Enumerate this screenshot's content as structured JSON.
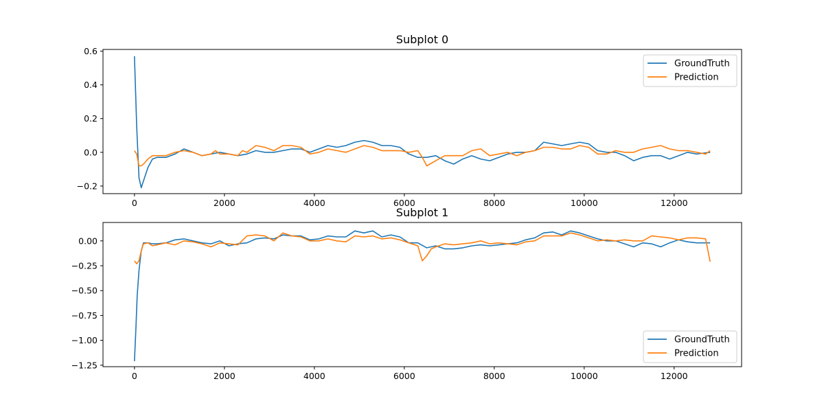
{
  "colors": {
    "groundtruth": "#1f77b4",
    "prediction": "#ff7f0e",
    "axis": "#000000",
    "legend_border": "#cccccc"
  },
  "chart_data": [
    {
      "type": "line",
      "title": "Subplot 0",
      "xlabel": "",
      "ylabel": "",
      "xlim": [
        -700,
        13500
      ],
      "ylim": [
        -0.245,
        0.61
      ],
      "xticks": [
        0,
        2000,
        4000,
        6000,
        8000,
        10000,
        12000
      ],
      "xtick_labels": [
        "0",
        "2000",
        "4000",
        "6000",
        "8000",
        "10000",
        "12000"
      ],
      "yticks": [
        -0.2,
        0.0,
        0.2,
        0.4,
        0.6
      ],
      "ytick_labels": [
        "−0.2",
        "0.0",
        "0.2",
        "0.4",
        "0.6"
      ],
      "grid": false,
      "legend_position": "top-right",
      "series": [
        {
          "name": "GroundTruth",
          "x": [
            0,
            50,
            100,
            150,
            200,
            300,
            400,
            500,
            700,
            900,
            1100,
            1300,
            1500,
            1700,
            1900,
            2100,
            2300,
            2500,
            2700,
            2900,
            3100,
            3300,
            3500,
            3700,
            3900,
            4100,
            4300,
            4500,
            4700,
            4900,
            5100,
            5300,
            5500,
            5700,
            5900,
            6100,
            6300,
            6500,
            6700,
            6900,
            7100,
            7300,
            7500,
            7700,
            7900,
            8100,
            8300,
            8500,
            8700,
            8900,
            9100,
            9300,
            9500,
            9700,
            9900,
            10100,
            10300,
            10500,
            10700,
            10900,
            11100,
            11300,
            11500,
            11700,
            11900,
            12100,
            12300,
            12500,
            12800
          ],
          "y": [
            0.57,
            0.15,
            -0.15,
            -0.21,
            -0.17,
            -0.09,
            -0.04,
            -0.03,
            -0.03,
            -0.01,
            0.02,
            0.0,
            -0.02,
            -0.01,
            0.0,
            -0.01,
            -0.02,
            -0.01,
            0.01,
            0.0,
            0.0,
            0.01,
            0.02,
            0.02,
            0.0,
            0.02,
            0.04,
            0.03,
            0.04,
            0.06,
            0.07,
            0.06,
            0.04,
            0.04,
            0.03,
            -0.01,
            -0.03,
            -0.03,
            -0.02,
            -0.05,
            -0.07,
            -0.04,
            -0.02,
            -0.04,
            -0.05,
            -0.03,
            -0.01,
            0.0,
            0.0,
            0.01,
            0.06,
            0.05,
            0.04,
            0.05,
            0.06,
            0.05,
            0.01,
            0.0,
            0.0,
            -0.02,
            -0.05,
            -0.03,
            -0.02,
            -0.02,
            -0.04,
            -0.02,
            0.0,
            -0.01,
            0.0
          ]
        },
        {
          "name": "Prediction",
          "x": [
            0,
            50,
            100,
            150,
            200,
            300,
            400,
            500,
            700,
            900,
            1100,
            1300,
            1500,
            1700,
            1800,
            1900,
            2100,
            2300,
            2400,
            2500,
            2700,
            2900,
            3100,
            3300,
            3500,
            3700,
            3900,
            4100,
            4300,
            4500,
            4700,
            4900,
            5100,
            5300,
            5500,
            5700,
            5900,
            6100,
            6300,
            6400,
            6500,
            6700,
            6900,
            7100,
            7300,
            7500,
            7700,
            7900,
            8100,
            8300,
            8500,
            8700,
            8900,
            9100,
            9300,
            9500,
            9700,
            9900,
            10100,
            10300,
            10500,
            10700,
            10900,
            11100,
            11300,
            11500,
            11700,
            11900,
            12100,
            12300,
            12500,
            12700,
            12800
          ],
          "y": [
            0.01,
            -0.01,
            -0.08,
            -0.08,
            -0.07,
            -0.04,
            -0.02,
            -0.02,
            -0.02,
            0.0,
            0.01,
            0.0,
            -0.02,
            -0.01,
            0.01,
            -0.01,
            -0.01,
            -0.02,
            0.01,
            0.0,
            0.04,
            0.03,
            0.01,
            0.04,
            0.04,
            0.03,
            -0.01,
            0.0,
            0.02,
            0.01,
            0.0,
            0.02,
            0.04,
            0.03,
            0.01,
            0.01,
            0.01,
            0.0,
            0.01,
            -0.03,
            -0.08,
            -0.05,
            -0.02,
            -0.02,
            -0.02,
            0.01,
            0.02,
            -0.02,
            -0.01,
            0.0,
            -0.02,
            0.0,
            0.01,
            0.03,
            0.03,
            0.02,
            0.02,
            0.04,
            0.03,
            -0.01,
            -0.01,
            0.01,
            0.0,
            0.0,
            0.02,
            0.03,
            0.04,
            0.02,
            0.01,
            0.01,
            0.0,
            -0.01,
            0.01
          ]
        }
      ]
    },
    {
      "type": "line",
      "title": "Subplot 1",
      "xlabel": "",
      "ylabel": "",
      "xlim": [
        -700,
        13500
      ],
      "ylim": [
        -1.265,
        0.185
      ],
      "xticks": [
        0,
        2000,
        4000,
        6000,
        8000,
        10000,
        12000
      ],
      "xtick_labels": [
        "0",
        "2000",
        "4000",
        "6000",
        "8000",
        "10000",
        "12000"
      ],
      "yticks": [
        -1.25,
        -1.0,
        -0.75,
        -0.5,
        -0.25,
        0.0
      ],
      "ytick_labels": [
        "−1.25",
        "−1.00",
        "−0.75",
        "−0.50",
        "−0.25",
        "0.00"
      ],
      "grid": false,
      "legend_position": "bottom-right",
      "series": [
        {
          "name": "GroundTruth",
          "x": [
            0,
            30,
            60,
            100,
            150,
            200,
            300,
            400,
            500,
            700,
            900,
            1100,
            1300,
            1500,
            1700,
            1900,
            2100,
            2300,
            2500,
            2700,
            2900,
            3100,
            3300,
            3500,
            3700,
            3900,
            4100,
            4300,
            4500,
            4700,
            4900,
            5100,
            5300,
            5500,
            5700,
            5900,
            6100,
            6300,
            6500,
            6700,
            6900,
            7100,
            7300,
            7500,
            7700,
            7900,
            8100,
            8300,
            8500,
            8700,
            8900,
            9100,
            9300,
            9500,
            9700,
            9900,
            10100,
            10300,
            10500,
            10700,
            10900,
            11100,
            11300,
            11500,
            11700,
            11900,
            12100,
            12300,
            12500,
            12800
          ],
          "y": [
            -1.21,
            -0.9,
            -0.55,
            -0.3,
            -0.1,
            -0.02,
            -0.02,
            -0.03,
            -0.03,
            -0.02,
            0.01,
            0.02,
            0.0,
            -0.02,
            -0.03,
            0.0,
            -0.05,
            -0.03,
            -0.02,
            0.02,
            0.03,
            0.02,
            0.06,
            0.05,
            0.05,
            0.01,
            0.02,
            0.05,
            0.04,
            0.04,
            0.1,
            0.08,
            0.1,
            0.04,
            0.06,
            0.04,
            -0.02,
            -0.02,
            -0.07,
            -0.05,
            -0.08,
            -0.08,
            -0.07,
            -0.05,
            -0.04,
            -0.05,
            -0.04,
            -0.03,
            -0.02,
            0.01,
            0.03,
            0.08,
            0.09,
            0.06,
            0.1,
            0.08,
            0.05,
            0.02,
            0.0,
            0.0,
            -0.03,
            -0.06,
            -0.02,
            -0.03,
            -0.06,
            -0.02,
            0.01,
            -0.01,
            -0.02,
            -0.02
          ]
        },
        {
          "name": "Prediction",
          "x": [
            0,
            50,
            100,
            150,
            200,
            300,
            400,
            500,
            700,
            900,
            1100,
            1300,
            1500,
            1700,
            1900,
            2100,
            2300,
            2500,
            2700,
            2900,
            3100,
            3300,
            3500,
            3700,
            3900,
            4100,
            4300,
            4500,
            4700,
            4900,
            5100,
            5300,
            5500,
            5700,
            5900,
            6100,
            6300,
            6400,
            6500,
            6600,
            6700,
            6900,
            7100,
            7300,
            7500,
            7700,
            7900,
            8100,
            8300,
            8500,
            8700,
            8900,
            9100,
            9300,
            9500,
            9700,
            9900,
            10100,
            10300,
            10500,
            10700,
            10900,
            11100,
            11300,
            11500,
            11700,
            11900,
            12100,
            12300,
            12500,
            12700,
            12800
          ],
          "y": [
            -0.2,
            -0.23,
            -0.2,
            -0.1,
            -0.03,
            -0.02,
            -0.05,
            -0.04,
            -0.02,
            -0.04,
            0.0,
            -0.01,
            -0.03,
            -0.06,
            -0.02,
            -0.03,
            -0.04,
            0.05,
            0.06,
            0.05,
            0.0,
            0.08,
            0.05,
            0.04,
            0.0,
            0.0,
            0.02,
            0.0,
            -0.01,
            0.05,
            0.04,
            0.05,
            0.02,
            0.03,
            0.01,
            -0.02,
            -0.05,
            -0.2,
            -0.15,
            -0.08,
            -0.06,
            -0.03,
            -0.04,
            -0.03,
            -0.02,
            0.0,
            -0.03,
            -0.02,
            -0.03,
            -0.04,
            -0.01,
            0.0,
            0.05,
            0.05,
            0.05,
            0.08,
            0.06,
            0.03,
            0.0,
            0.01,
            0.0,
            0.01,
            0.0,
            0.0,
            0.05,
            0.04,
            0.03,
            0.01,
            0.03,
            0.03,
            0.02,
            -0.21
          ]
        }
      ]
    }
  ]
}
